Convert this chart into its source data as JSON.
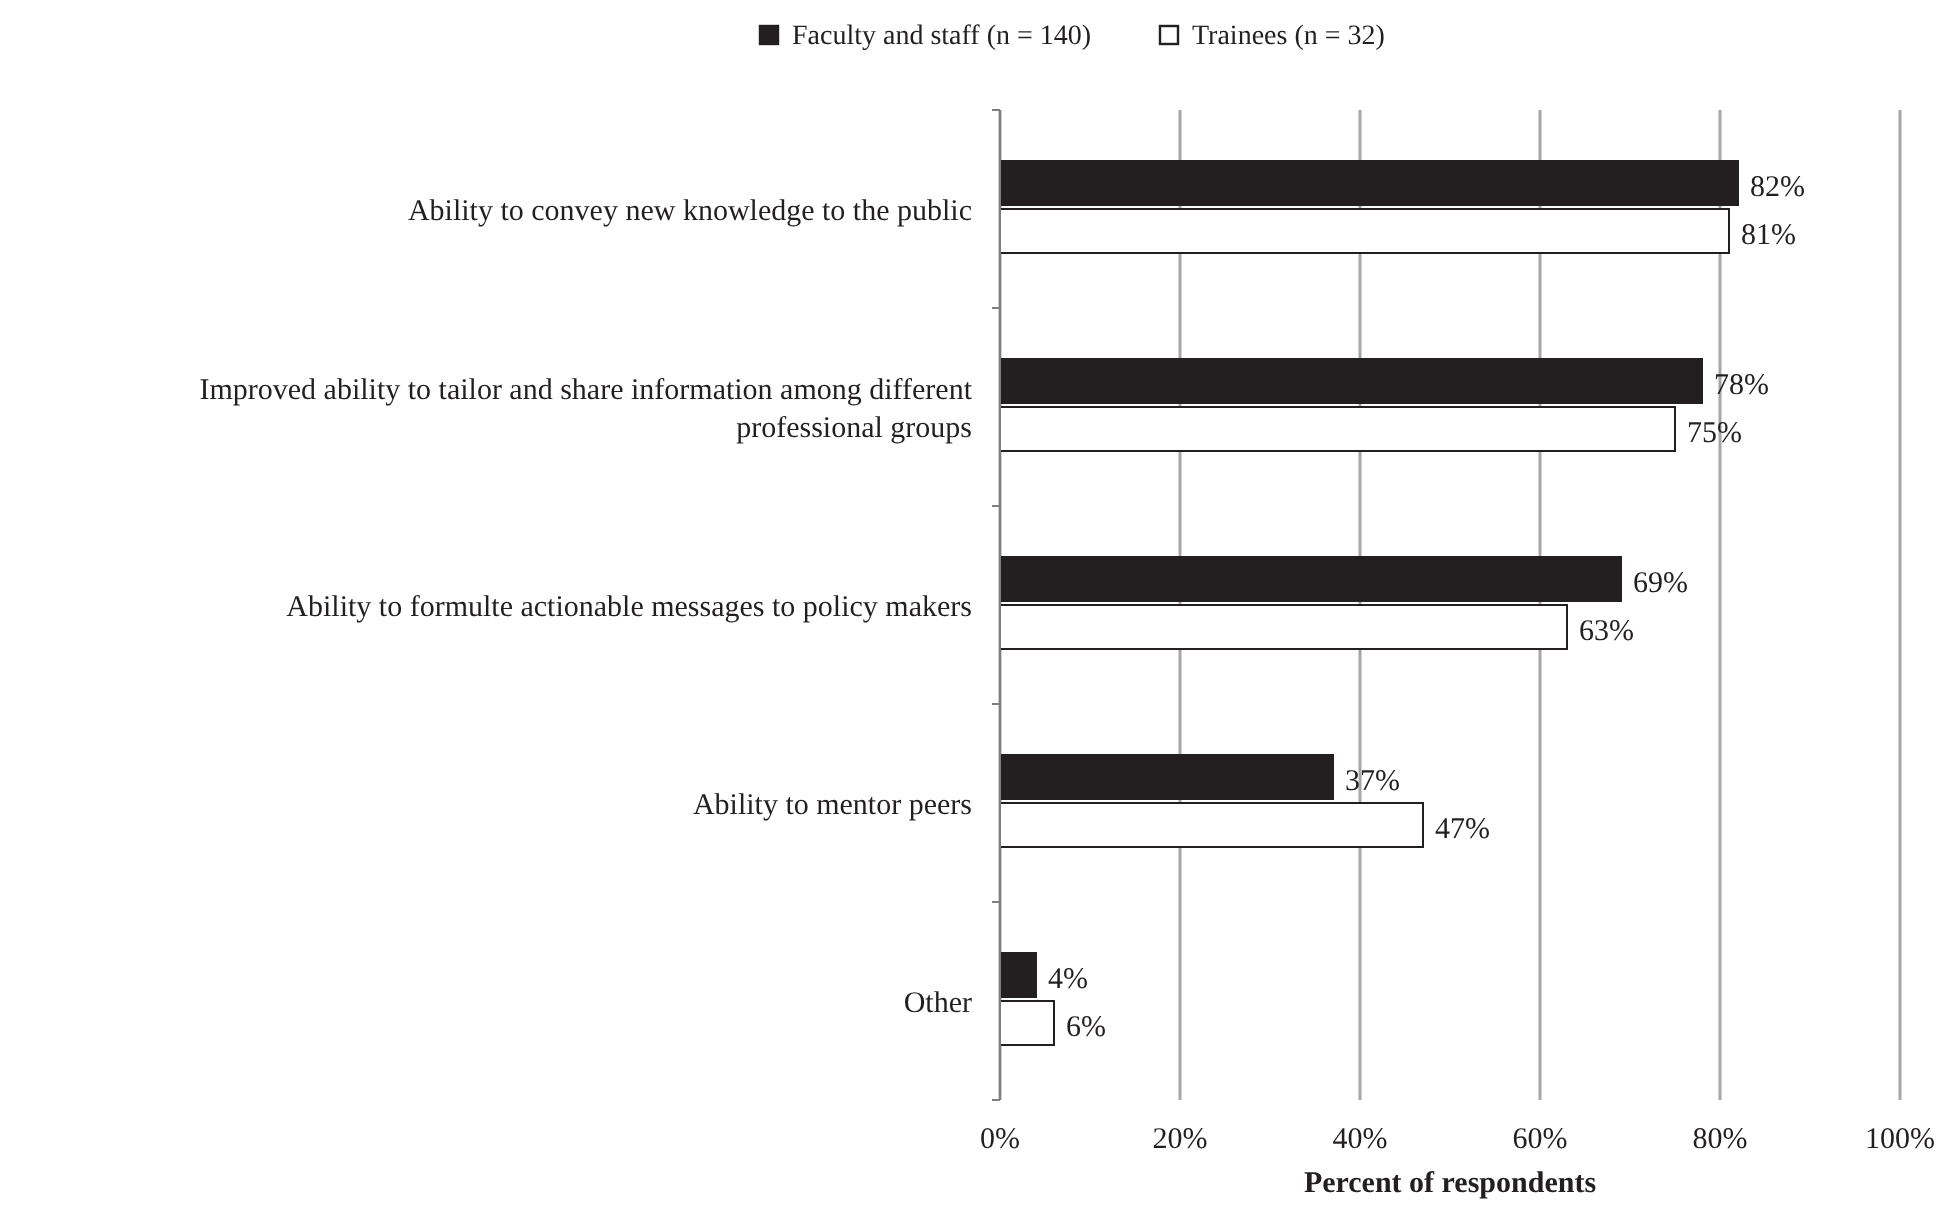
{
  "chart_data": {
    "type": "bar",
    "orientation": "horizontal",
    "xlabel": "Percent of respondents",
    "categories": [
      "Ability to convey new knowledge to the public",
      "Improved ability to tailor and share information among different professional groups",
      "Ability to formulte actionable messages to policy makers",
      "Ability to mentor peers",
      "Other"
    ],
    "series": [
      {
        "name": "Faculty and staff (n = 140)",
        "color": "#231f20",
        "values": [
          82,
          78,
          69,
          37,
          4
        ],
        "value_labels": [
          "82%",
          "78%",
          "69%",
          "37%",
          "4%"
        ]
      },
      {
        "name": "Trainees (n = 32)",
        "color": "#ffffff",
        "values": [
          81,
          75,
          63,
          47,
          6
        ],
        "value_labels": [
          "81%",
          "75%",
          "63%",
          "47%",
          "6%"
        ]
      }
    ],
    "xlim": [
      0,
      100
    ],
    "xticks": [
      {
        "value": 0,
        "label": "0%"
      },
      {
        "value": 20,
        "label": "20%"
      },
      {
        "value": 40,
        "label": "40%"
      },
      {
        "value": 60,
        "label": "60%"
      },
      {
        "value": 80,
        "label": "80%"
      },
      {
        "value": 100,
        "label": "100%"
      }
    ],
    "grid": "x",
    "legend": "top"
  }
}
